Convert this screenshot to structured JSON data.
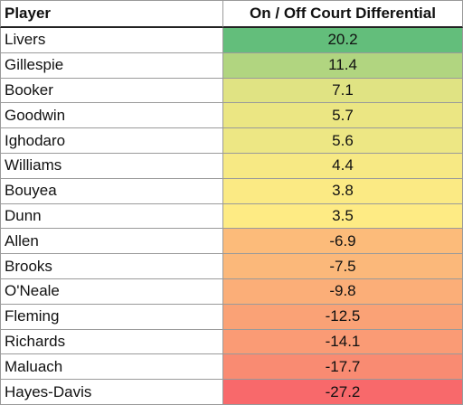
{
  "table": {
    "header": [
      "Player",
      "On / Off Court Differential"
    ],
    "rows": [
      [
        "Livers",
        20.2
      ],
      [
        "Gillespie",
        11.4
      ],
      [
        "Booker",
        7.1
      ],
      [
        "Goodwin",
        5.7
      ],
      [
        "Ighodaro",
        5.6
      ],
      [
        "Williams",
        4.4
      ],
      [
        "Bouyea",
        3.8
      ],
      [
        "Dunn",
        3.5
      ],
      [
        "Allen",
        -6.9
      ],
      [
        "Brooks",
        -7.5
      ],
      [
        "O'Neale",
        -9.8
      ],
      [
        "Fleming",
        -12.5
      ],
      [
        "Richards",
        -14.1
      ],
      [
        "Maluach",
        -17.7
      ],
      [
        "Hayes-Davis",
        -27.2
      ]
    ],
    "row_colors": [
      "#63be7b",
      "#b1d580",
      "#e0e383",
      "#ebe683",
      "#ede784",
      "#f7e984",
      "#fbea84",
      "#feeb84",
      "#fcbb7a",
      "#fbb87a",
      "#fbae78",
      "#faa276",
      "#fa9b75",
      "#f98b72",
      "#f8696b"
    ]
  }
}
